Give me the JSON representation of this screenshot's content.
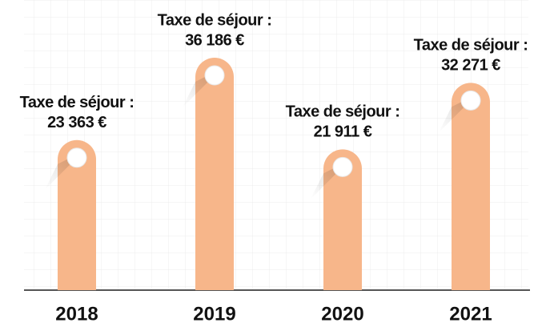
{
  "chart_data": {
    "type": "bar",
    "categories": [
      "2018",
      "2019",
      "2020",
      "2021"
    ],
    "series": [
      {
        "name": "Taxe de séjour :",
        "color": "#f7b68a",
        "values": [
          23363,
          36186,
          21911,
          32271
        ],
        "value_labels": [
          "23 363 €",
          "36 186 €",
          "21 911 €",
          "32 271 €"
        ]
      }
    ]
  }
}
